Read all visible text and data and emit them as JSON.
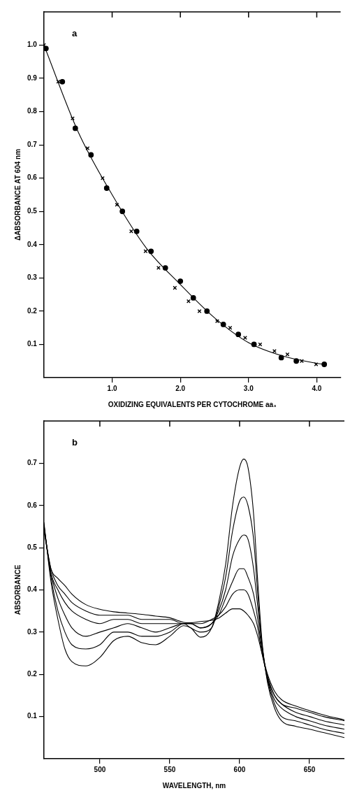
{
  "chart_data": [
    {
      "type": "scatter",
      "annotations": [
        "a"
      ],
      "xlabel": "OXIDIZING EQUIVALENTS PER CYTOCHROME aa₃",
      "ylabel": "ΔABSORBANCE AT 604 nm",
      "xlim": [
        0,
        4.35
      ],
      "ylim": [
        0,
        1.1
      ],
      "xticks": [
        {
          "value": 1,
          "label": "1.0"
        },
        {
          "value": 2,
          "label": "2.0"
        },
        {
          "value": 3,
          "label": "3.0"
        },
        {
          "value": 4,
          "label": "4.0"
        }
      ],
      "yticks": [
        0.1,
        0.2,
        0.3,
        0.4,
        0.5,
        0.6,
        0.7,
        0.8,
        0.9,
        {
          "value": 1,
          "label": "1.0"
        }
      ],
      "grid": false,
      "series": [
        {
          "marker": "circle",
          "color": "#000000",
          "x": [
            0.03,
            0.27,
            0.46,
            0.69,
            0.92,
            1.15,
            1.36,
            1.57,
            1.78,
            2.0,
            2.19,
            2.39,
            2.63,
            2.85,
            3.08,
            3.48,
            3.7,
            4.11
          ],
          "values": [
            0.99,
            0.89,
            0.75,
            0.67,
            0.57,
            0.5,
            0.44,
            0.38,
            0.33,
            0.29,
            0.24,
            0.2,
            0.16,
            0.13,
            0.1,
            0.06,
            0.05,
            0.04
          ]
        },
        {
          "marker": "cross",
          "color": "#000000",
          "x": [
            0.0,
            0.21,
            0.42,
            0.64,
            0.86,
            1.07,
            1.28,
            1.49,
            1.68,
            1.92,
            2.12,
            2.28,
            2.54,
            2.73,
            2.95,
            3.17,
            3.38,
            3.57,
            3.78,
            3.99
          ],
          "values": [
            1.0,
            0.89,
            0.78,
            0.69,
            0.6,
            0.52,
            0.44,
            0.38,
            0.33,
            0.27,
            0.23,
            0.2,
            0.17,
            0.15,
            0.12,
            0.1,
            0.08,
            0.07,
            0.05,
            0.04
          ]
        },
        {
          "type": "line",
          "marker": "none",
          "line_style": "solid",
          "color": "#000000",
          "x": [
            0,
            0.5,
            1.0,
            1.5,
            2.0,
            2.5,
            3.0,
            3.5,
            4.0,
            4.1
          ],
          "values": [
            1.0,
            0.74,
            0.55,
            0.39,
            0.28,
            0.18,
            0.105,
            0.065,
            0.043,
            0.04
          ]
        }
      ]
    },
    {
      "type": "line",
      "annotations": [
        "b"
      ],
      "xlabel": "WAVELENGTH, nm",
      "ylabel": "ABSORBANCE",
      "xlim": [
        460,
        675
      ],
      "ylim": [
        0,
        0.8
      ],
      "xticks": [
        500,
        550,
        600,
        650
      ],
      "yticks": [
        0.1,
        0.2,
        0.3,
        0.4,
        0.5,
        0.6,
        0.7
      ],
      "grid": false,
      "marker": "none",
      "line_style": "solid",
      "x": [
        460,
        465,
        470,
        475,
        480,
        490,
        500,
        510,
        520,
        530,
        540,
        550,
        560,
        565,
        572,
        580,
        585,
        590,
        595,
        600,
        603,
        606,
        610,
        613,
        616,
        620,
        625,
        630,
        640,
        650,
        660,
        675
      ],
      "series": [
        {
          "color": "#000000",
          "values": [
            0.56,
            0.42,
            0.33,
            0.26,
            0.23,
            0.22,
            0.24,
            0.28,
            0.29,
            0.275,
            0.27,
            0.29,
            0.315,
            0.31,
            0.288,
            0.31,
            0.37,
            0.46,
            0.6,
            0.69,
            0.71,
            0.69,
            0.58,
            0.42,
            0.28,
            0.18,
            0.12,
            0.09,
            0.077,
            0.07,
            0.062,
            0.05
          ]
        },
        {
          "color": "#000000",
          "values": [
            0.555,
            0.43,
            0.35,
            0.3,
            0.27,
            0.26,
            0.27,
            0.3,
            0.3,
            0.29,
            0.29,
            0.3,
            0.32,
            0.31,
            0.3,
            0.31,
            0.36,
            0.43,
            0.54,
            0.61,
            0.62,
            0.6,
            0.52,
            0.39,
            0.27,
            0.185,
            0.13,
            0.1,
            0.09,
            0.08,
            0.07,
            0.06
          ]
        },
        {
          "color": "#000000",
          "values": [
            0.55,
            0.44,
            0.38,
            0.34,
            0.31,
            0.29,
            0.3,
            0.31,
            0.32,
            0.31,
            0.3,
            0.31,
            0.32,
            0.32,
            0.31,
            0.32,
            0.35,
            0.4,
            0.48,
            0.52,
            0.53,
            0.52,
            0.45,
            0.36,
            0.27,
            0.19,
            0.14,
            0.12,
            0.1,
            0.09,
            0.08,
            0.07
          ]
        },
        {
          "color": "#000000",
          "values": [
            0.55,
            0.44,
            0.4,
            0.37,
            0.35,
            0.33,
            0.32,
            0.33,
            0.33,
            0.32,
            0.32,
            0.32,
            0.32,
            0.32,
            0.31,
            0.32,
            0.34,
            0.38,
            0.42,
            0.45,
            0.45,
            0.43,
            0.39,
            0.33,
            0.26,
            0.19,
            0.15,
            0.13,
            0.11,
            0.1,
            0.09,
            0.08
          ]
        },
        {
          "color": "#000000",
          "values": [
            0.545,
            0.45,
            0.41,
            0.39,
            0.37,
            0.35,
            0.34,
            0.34,
            0.34,
            0.33,
            0.33,
            0.33,
            0.32,
            0.32,
            0.32,
            0.33,
            0.34,
            0.36,
            0.39,
            0.4,
            0.4,
            0.39,
            0.35,
            0.31,
            0.25,
            0.195,
            0.15,
            0.13,
            0.12,
            0.11,
            0.1,
            0.09
          ]
        },
        {
          "color": "#000000",
          "values": [
            0.54,
            0.45,
            0.427,
            0.41,
            0.39,
            0.365,
            0.354,
            0.348,
            0.345,
            0.342,
            0.338,
            0.334,
            0.323,
            0.322,
            0.325,
            0.328,
            0.333,
            0.345,
            0.355,
            0.355,
            0.35,
            0.34,
            0.32,
            0.29,
            0.25,
            0.2,
            0.16,
            0.14,
            0.125,
            0.114,
            0.104,
            0.092
          ]
        }
      ]
    }
  ]
}
